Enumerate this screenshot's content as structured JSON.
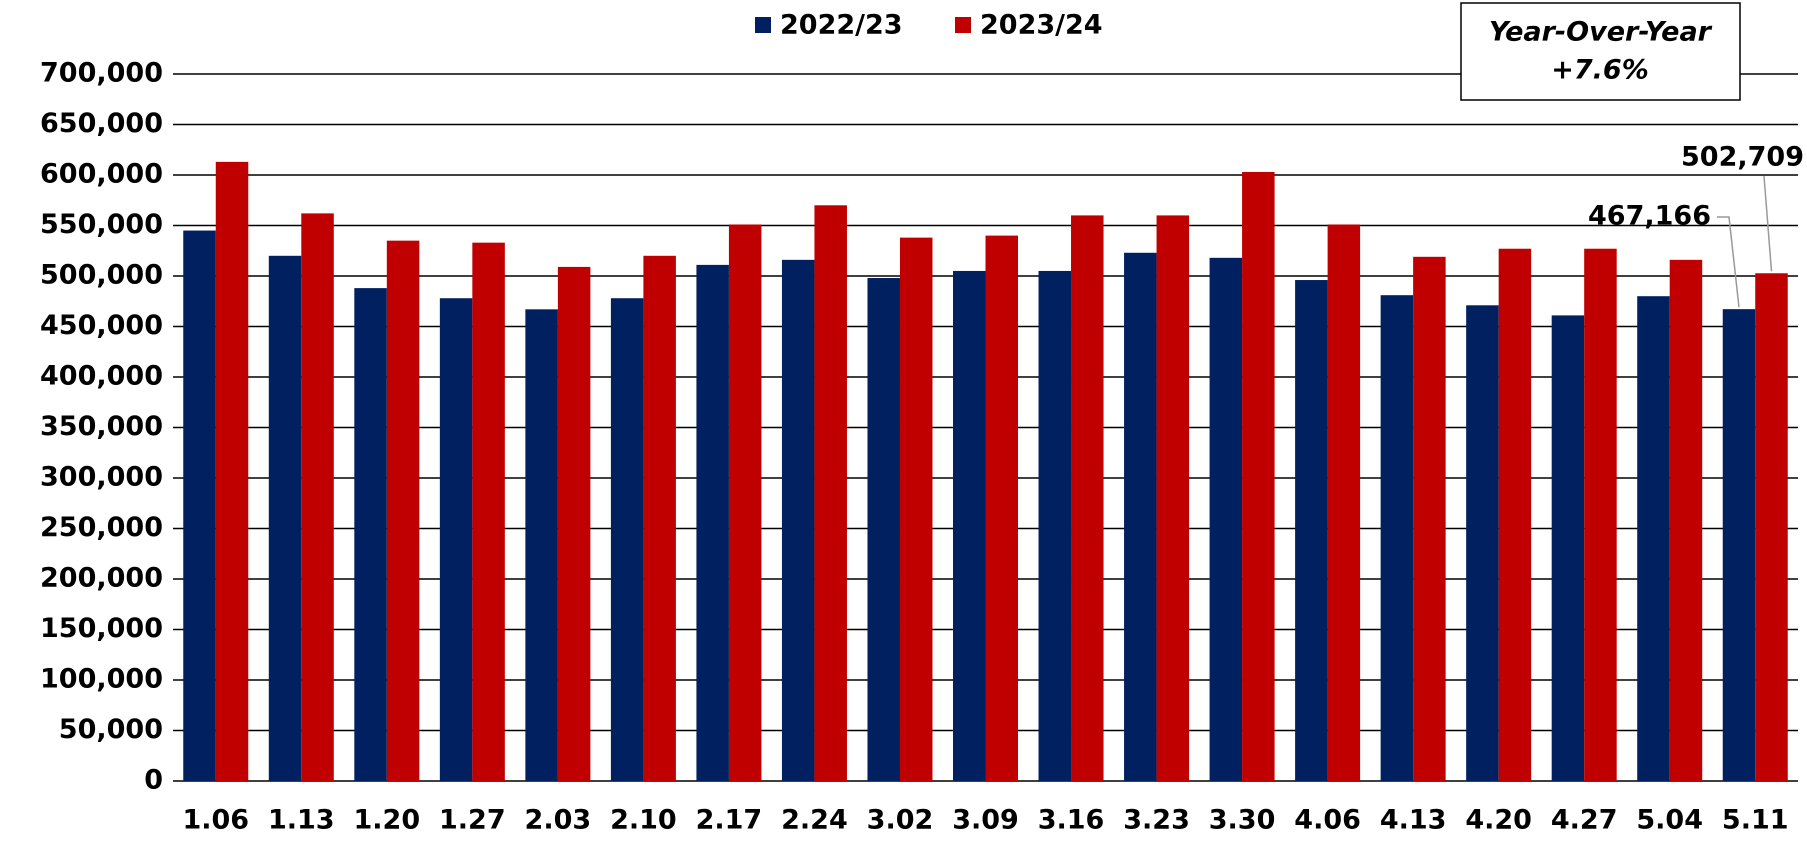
{
  "chart_data": {
    "type": "bar",
    "categories": [
      "1.06",
      "1.13",
      "1.20",
      "1.27",
      "2.03",
      "2.10",
      "2.17",
      "2.24",
      "3.02",
      "3.09",
      "3.16",
      "3.23",
      "3.30",
      "4.06",
      "4.13",
      "4.20",
      "4.27",
      "5.04",
      "5.11"
    ],
    "series": [
      {
        "name": "2022/23",
        "color": "#002060",
        "values": [
          545000,
          520000,
          488000,
          478000,
          467000,
          478000,
          511000,
          516000,
          498000,
          505000,
          505000,
          523000,
          518000,
          496000,
          481000,
          471000,
          461000,
          480000,
          467166
        ],
        "value_labels": [
          null,
          null,
          null,
          null,
          null,
          null,
          null,
          null,
          null,
          null,
          null,
          null,
          null,
          null,
          null,
          null,
          null,
          null,
          "467,166"
        ]
      },
      {
        "name": "2023/24",
        "color": "#c00000",
        "values": [
          613000,
          562000,
          535000,
          533000,
          509000,
          520000,
          551000,
          570000,
          538000,
          540000,
          560000,
          560000,
          603000,
          551000,
          519000,
          527000,
          527000,
          516000,
          502709
        ],
        "value_labels": [
          null,
          null,
          null,
          null,
          null,
          null,
          null,
          null,
          null,
          null,
          null,
          null,
          null,
          null,
          null,
          null,
          null,
          null,
          "502,709"
        ]
      }
    ],
    "annotation": [
      "Year-Over-Year",
      "+7.6%"
    ],
    "ylim": [
      0,
      700000
    ],
    "yticks": [
      0,
      {
        "value": 50000,
        "label": "50,000"
      },
      {
        "value": 100000,
        "label": "100,000"
      },
      {
        "value": 150000,
        "label": "150,000"
      },
      {
        "value": 200000,
        "label": "200,000"
      },
      {
        "value": 250000,
        "label": "250,000"
      },
      {
        "value": 300000,
        "label": "300,000"
      },
      {
        "value": 350000,
        "label": "350,000"
      },
      {
        "value": 400000,
        "label": "400,000"
      },
      {
        "value": 450000,
        "label": "450,000"
      },
      {
        "value": 500000,
        "label": "500,000"
      },
      {
        "value": 550000,
        "label": "550,000"
      },
      {
        "value": 600000,
        "label": "600,000"
      },
      {
        "value": 650000,
        "label": "650,000"
      },
      {
        "value": 700000,
        "label": "700,000"
      }
    ],
    "grid": true,
    "legend": "top"
  }
}
